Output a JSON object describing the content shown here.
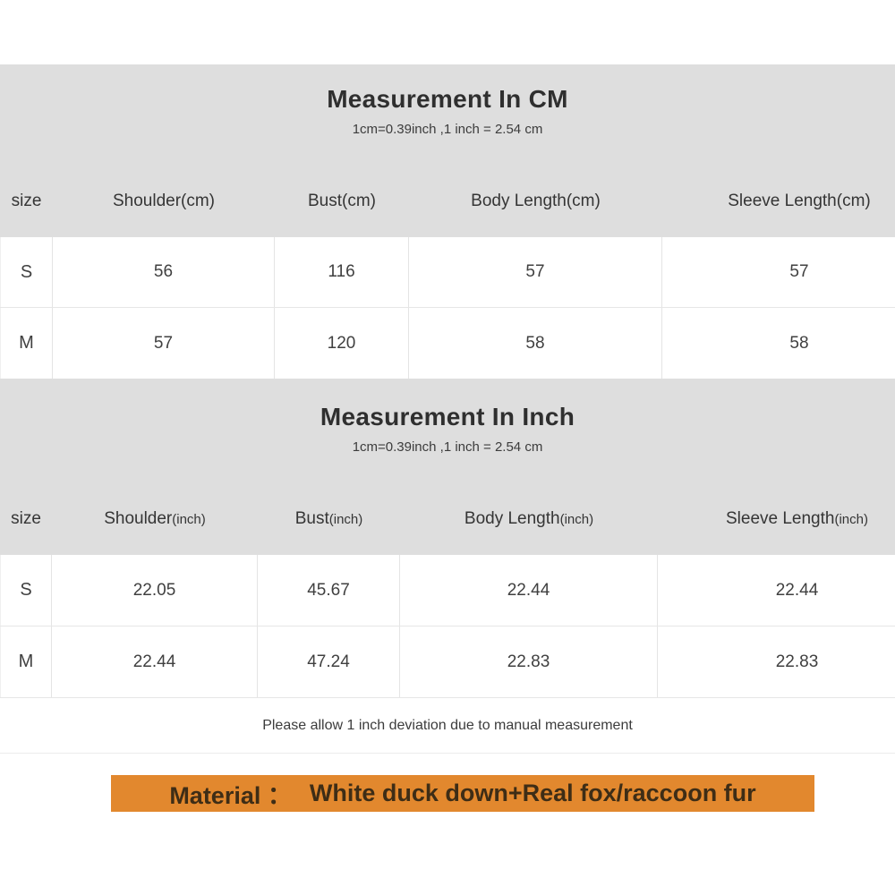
{
  "colors": {
    "band_background": "#dedede",
    "material_background": "#e2882e",
    "material_text": "#3e2d16",
    "body_text": "#3e3e3e"
  },
  "cm": {
    "title": "Measurement In CM",
    "subtitle": "1cm=0.39inch ,1 inch = 2.54 cm",
    "headers": {
      "size": "size",
      "shoulder": {
        "label": "Shoulder",
        "unit": "(cm)"
      },
      "bust": {
        "label": "Bust",
        "unit": "(cm)"
      },
      "body_length": {
        "label": "Body Length",
        "unit": "(cm)"
      },
      "sleeve_length": {
        "label": "Sleeve Length",
        "unit": "(cm)"
      }
    },
    "rows": [
      {
        "size": "S",
        "shoulder": "56",
        "bust": "116",
        "body_length": "57",
        "sleeve_length": "57"
      },
      {
        "size": "M",
        "shoulder": "57",
        "bust": "120",
        "body_length": "58",
        "sleeve_length": "58"
      }
    ]
  },
  "inch": {
    "title": "Measurement In Inch",
    "subtitle": "1cm=0.39inch ,1 inch = 2.54 cm",
    "headers": {
      "size": "size",
      "shoulder": {
        "label": "Shoulder",
        "unit": "(inch)"
      },
      "bust": {
        "label": "Bust",
        "unit": "(inch)"
      },
      "body_length": {
        "label": "Body Length",
        "unit": "(inch)"
      },
      "sleeve_length": {
        "label": "Sleeve Length",
        "unit": "(inch)"
      }
    },
    "rows": [
      {
        "size": "S",
        "shoulder": "22.05",
        "bust": "45.67",
        "body_length": "22.44",
        "sleeve_length": "22.44"
      },
      {
        "size": "M",
        "shoulder": "22.44",
        "bust": "47.24",
        "body_length": "22.83",
        "sleeve_length": "22.83"
      }
    ]
  },
  "note": "Please allow 1 inch deviation due to manual measurement",
  "material": {
    "label": "Material ：",
    "value": "White duck down+Real fox/raccoon fur"
  }
}
